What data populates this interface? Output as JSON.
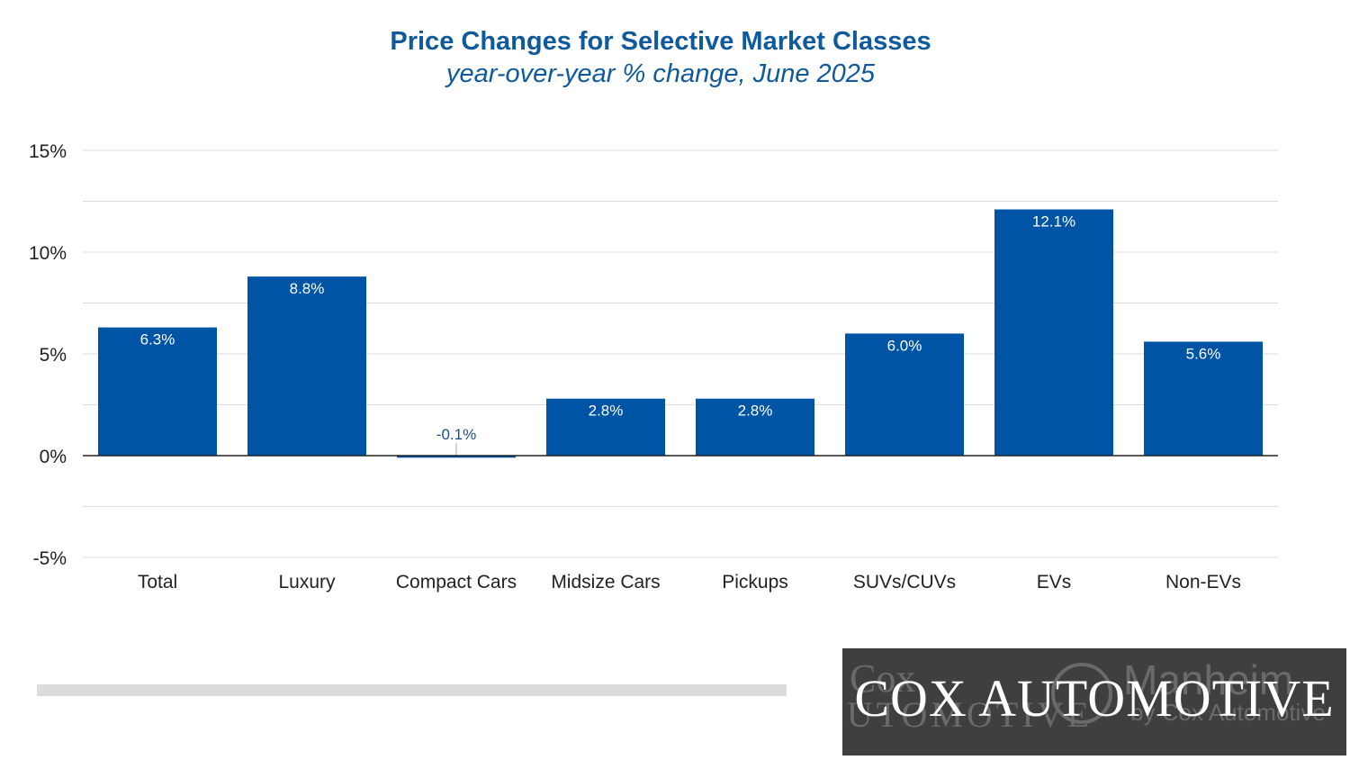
{
  "chart_data": {
    "type": "bar",
    "title": "Price Changes for Selective Market Classes",
    "subtitle": "year-over-year % change, June 2025",
    "categories": [
      "Total",
      "Luxury",
      "Compact Cars",
      "Midsize Cars",
      "Pickups",
      "SUVs/CUVs",
      "EVs",
      "Non-EVs"
    ],
    "values": [
      6.3,
      8.8,
      -0.1,
      2.8,
      2.8,
      6.0,
      12.1,
      5.6
    ],
    "data_labels": [
      "6.3%",
      "8.8%",
      "-0.1%",
      "2.8%",
      "2.8%",
      "6.0%",
      "12.1%",
      "5.6%"
    ],
    "ylim": [
      -5,
      15
    ],
    "yticks": [
      -5,
      0,
      5,
      10,
      15
    ],
    "ytick_labels": [
      "-5%",
      "0%",
      "5%",
      "10%",
      "15%"
    ],
    "grid": true,
    "bar_color": "#0054a6"
  },
  "logo": {
    "text": "COX AUTOMOTIVE",
    "ghost_cox": "Cox",
    "ghost_automotive": "AUTOMOTIVE",
    "ghost_manheim": "Manheim",
    "ghost_manheim_sub": "by Cox Automotive"
  },
  "colors": {
    "title": "#0f5a9c",
    "bar": "#0054a6",
    "logo_bg": "#3f3f3f"
  }
}
